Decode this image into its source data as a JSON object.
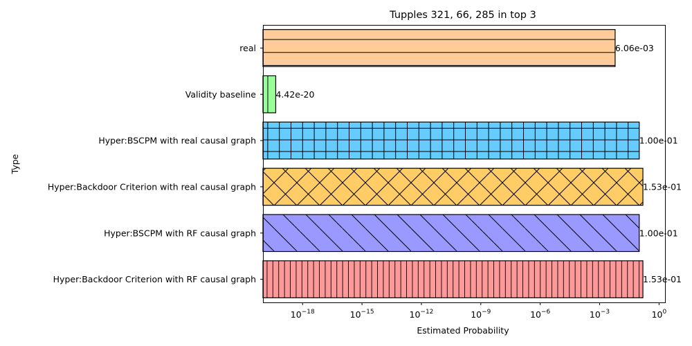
{
  "chart_data": {
    "type": "bar",
    "orientation": "horizontal",
    "title": "Tupples 321, 66, 285 in top 3",
    "xlabel": "Estimated Probability",
    "ylabel": "Type",
    "x_scale": "log",
    "xlim": [
      1e-20,
      2
    ],
    "x_ticks": [
      {
        "value": 1e-18,
        "base": "10",
        "exp": "−18"
      },
      {
        "value": 1e-15,
        "base": "10",
        "exp": "−15"
      },
      {
        "value": 1e-12,
        "base": "10",
        "exp": "−12"
      },
      {
        "value": 1e-09,
        "base": "10",
        "exp": "−9"
      },
      {
        "value": 1e-06,
        "base": "10",
        "exp": "−6"
      },
      {
        "value": 0.001,
        "base": "10",
        "exp": "−3"
      },
      {
        "value": 1,
        "base": "10",
        "exp": "0"
      }
    ],
    "grid": false,
    "bars": [
      {
        "category": "real",
        "value": 0.00606,
        "value_label": "6.06e-03",
        "color": "#ffcc99",
        "hatch": "horizontal-lines"
      },
      {
        "category": "Validity baseline",
        "value": 4.42e-20,
        "value_label": "4.42e-20",
        "color": "#99ff99",
        "hatch": "vertical-lines"
      },
      {
        "category": "Hyper:BSCPM with real causal graph",
        "value": 0.1,
        "value_label": "1.00e-01",
        "color": "#66ccff",
        "hatch": "grid"
      },
      {
        "category": "Hyper:Backdoor Criterion with real causal graph",
        "value": 0.153,
        "value_label": "1.53e-01",
        "color": "#ffcc66",
        "hatch": "crosshatch"
      },
      {
        "category": "Hyper:BSCPM with RF causal graph",
        "value": 0.1,
        "value_label": "1.00e-01",
        "color": "#9999ff",
        "hatch": "backslash"
      },
      {
        "category": "Hyper:Backdoor Criterion with RF causal graph",
        "value": 0.153,
        "value_label": "1.53e-01",
        "color": "#ff9999",
        "hatch": "dense-vertical"
      }
    ]
  }
}
